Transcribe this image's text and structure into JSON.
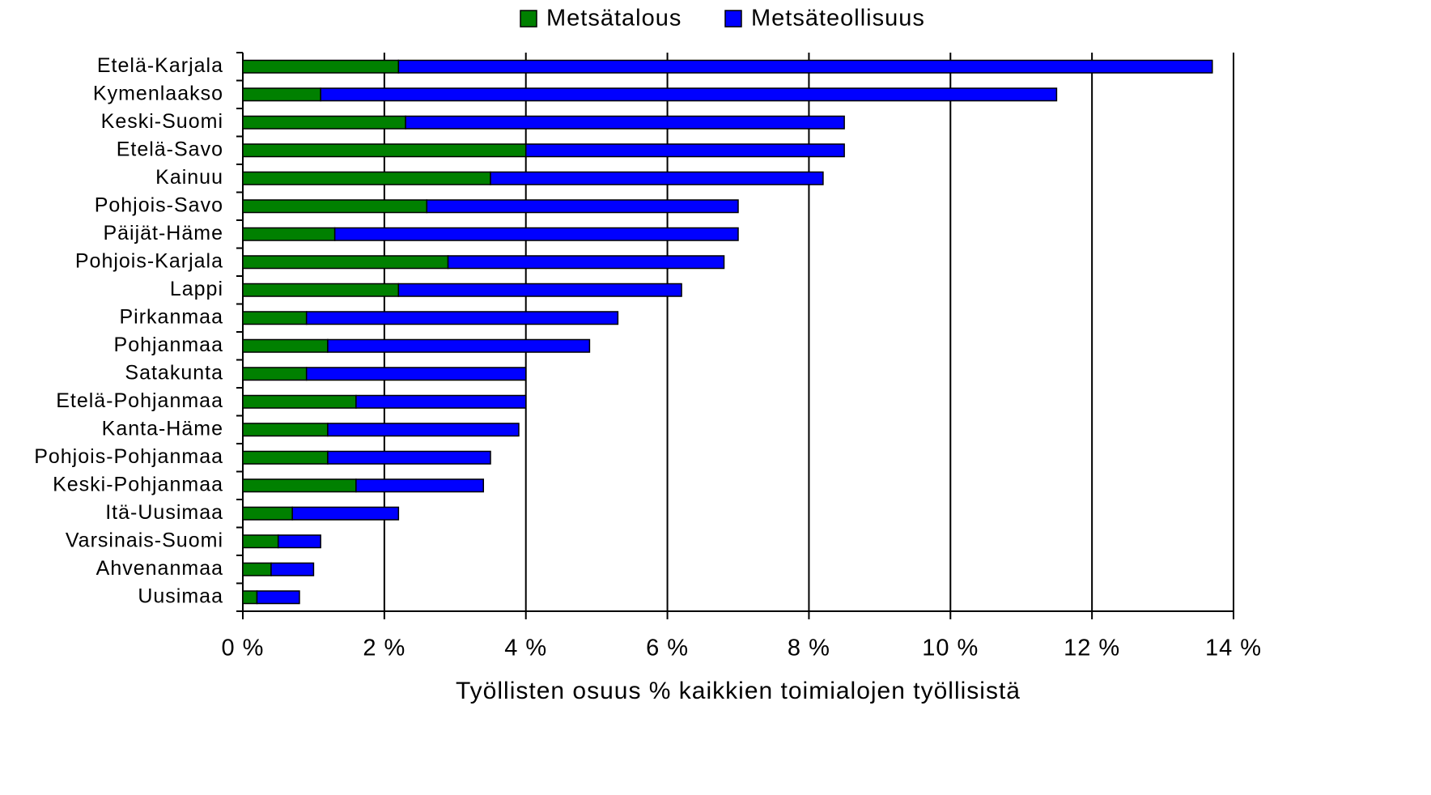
{
  "chart_data": {
    "type": "stacked-bar-horizontal",
    "xlabel": "Työllisten osuus % kaikkien toimialojen työllisistä",
    "categories": [
      "Etelä-Karjala",
      "Kymenlaakso",
      "Keski-Suomi",
      "Etelä-Savo",
      "Kainuu",
      "Pohjois-Savo",
      "Päijät-Häme",
      "Pohjois-Karjala",
      "Lappi",
      "Pirkanmaa",
      "Pohjanmaa",
      "Satakunta",
      "Etelä-Pohjanmaa",
      "Kanta-Häme",
      "Pohjois-Pohjanmaa",
      "Keski-Pohjanmaa",
      "Itä-Uusimaa",
      "Varsinais-Suomi",
      "Ahvenanmaa",
      "Uusimaa"
    ],
    "series": [
      {
        "name": "Metsätalous",
        "color": "#008000",
        "values": [
          2.2,
          1.1,
          2.3,
          4.0,
          3.5,
          2.6,
          1.3,
          2.9,
          2.2,
          0.9,
          1.2,
          0.9,
          1.6,
          1.2,
          1.2,
          1.6,
          0.7,
          0.5,
          0.4,
          0.2
        ]
      },
      {
        "name": "Metsäteollisuus",
        "color": "#0000ff",
        "values": [
          11.5,
          10.4,
          6.2,
          4.5,
          4.7,
          4.4,
          5.7,
          3.9,
          4.0,
          4.4,
          3.7,
          3.1,
          2.4,
          2.7,
          2.3,
          1.8,
          1.5,
          0.6,
          0.6,
          0.6
        ]
      }
    ],
    "xlim": [
      0,
      14
    ],
    "xticks": [
      {
        "value": 0,
        "label": "0 %"
      },
      {
        "value": 2,
        "label": "2 %"
      },
      {
        "value": 4,
        "label": "4 %"
      },
      {
        "value": 6,
        "label": "6 %"
      },
      {
        "value": 8,
        "label": "8 %"
      },
      {
        "value": 10,
        "label": "10 %"
      },
      {
        "value": 12,
        "label": "12 %"
      },
      {
        "value": 14,
        "label": "14 %"
      }
    ],
    "grid": true,
    "legend": "top"
  }
}
